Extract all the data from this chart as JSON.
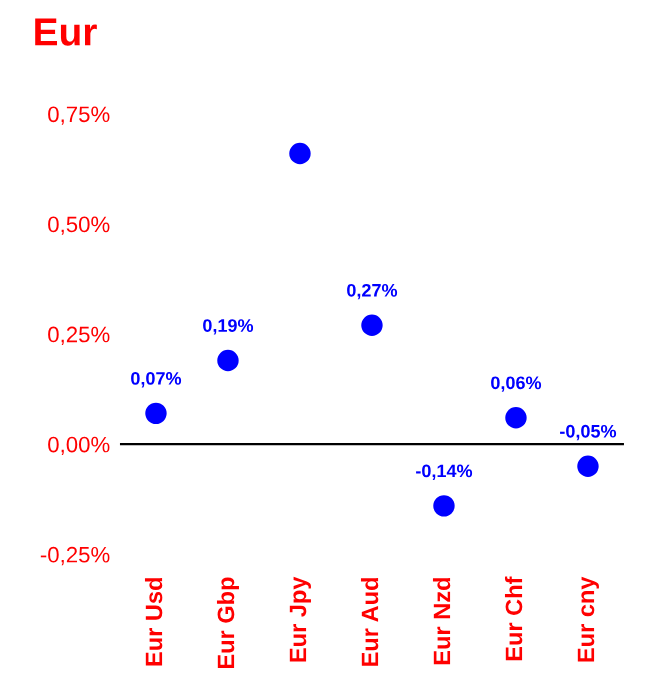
{
  "chart_data": {
    "type": "scatter",
    "title": "Eur",
    "categories": [
      "Eur Usd",
      "Eur Gbp",
      "Eur Jpy",
      "Eur Aud",
      "Eur Nzd",
      "Eur Chf",
      "Eur cny"
    ],
    "series": [
      {
        "color": "#0000ff",
        "values": [
          0.07,
          0.19,
          0.66,
          0.27,
          -0.14,
          0.06,
          -0.05
        ],
        "value_labels": [
          "0,07%",
          "0,19%",
          null,
          "0,27%",
          "-0,14%",
          "0,06%",
          "-0,05%"
        ]
      }
    ],
    "ylim": [
      -0.25,
      0.75
    ],
    "yticks": [
      {
        "value": -0.25,
        "label": "-0,25%"
      },
      {
        "value": 0,
        "label": "0,00%"
      },
      {
        "value": 0.25,
        "label": "0,25%"
      },
      {
        "value": 0.5,
        "label": "0,50%"
      },
      {
        "value": 0.75,
        "label": "0,75%"
      }
    ],
    "ref_lines": [
      {
        "axis": "y",
        "value": 0,
        "color": "#000000"
      }
    ],
    "grid": false,
    "legend": false,
    "marker": "circle"
  }
}
